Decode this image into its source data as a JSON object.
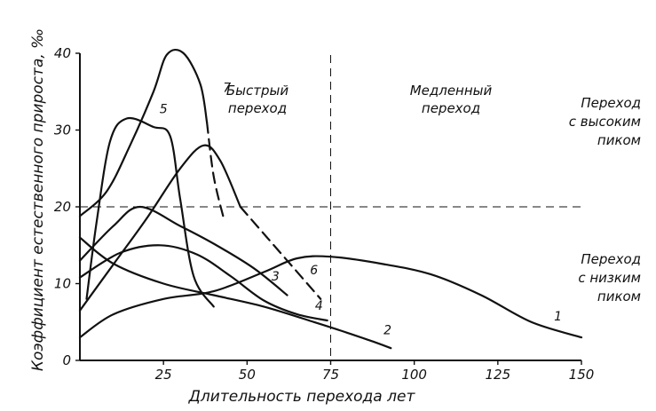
{
  "chart_data": {
    "type": "line",
    "title": "",
    "xlabel": "Длительность перехода лет",
    "ylabel": "Коэффициент естественного прироста, ‰",
    "xlim": [
      0,
      150
    ],
    "ylim": [
      0,
      40
    ],
    "xticks": [
      "25",
      "50",
      "75",
      "100",
      "125",
      "150"
    ],
    "yticks": [
      "0",
      "10",
      "20",
      "30",
      "40"
    ],
    "grid": false,
    "reference_lines": [
      {
        "axis": "x",
        "value": 75
      },
      {
        "axis": "y",
        "value": 20
      }
    ],
    "region_labels": {
      "fast": [
        "Быстрый",
        "переход"
      ],
      "slow": [
        "Медленный",
        "переход"
      ],
      "high_peak": [
        "Переход",
        "с высоким",
        "пиком"
      ],
      "low_peak": [
        "Переход",
        "с низким",
        "пиком"
      ]
    },
    "series": [
      {
        "name": "1",
        "solid": [
          [
            0,
            3
          ],
          [
            10,
            6
          ],
          [
            25,
            8
          ],
          [
            40,
            9
          ],
          [
            55,
            11.5
          ],
          [
            65,
            13.3
          ],
          [
            75,
            13.5
          ],
          [
            90,
            12.6
          ],
          [
            105,
            11.2
          ],
          [
            120,
            8.5
          ],
          [
            135,
            5
          ],
          [
            150,
            3
          ]
        ]
      },
      {
        "name": "2",
        "solid": [
          [
            0,
            16
          ],
          [
            10,
            12.6
          ],
          [
            25,
            10
          ],
          [
            40,
            8.5
          ],
          [
            55,
            7
          ],
          [
            70,
            5
          ],
          [
            80,
            3.6
          ],
          [
            88,
            2.4
          ],
          [
            93,
            1.6
          ]
        ]
      },
      {
        "name": "3",
        "solid": [
          [
            0,
            13
          ],
          [
            10,
            17.5
          ],
          [
            18,
            20
          ],
          [
            30,
            17.5
          ],
          [
            40,
            15.2
          ],
          [
            52,
            12
          ],
          [
            62,
            8.5
          ]
        ]
      },
      {
        "name": "4",
        "solid": [
          [
            0,
            10.8
          ],
          [
            12,
            14
          ],
          [
            24,
            15
          ],
          [
            35,
            13.8
          ],
          [
            45,
            11
          ],
          [
            55,
            7.8
          ],
          [
            65,
            6
          ],
          [
            74,
            5.2
          ]
        ]
      },
      {
        "name": "5",
        "solid": [
          [
            2,
            8
          ],
          [
            5,
            18
          ],
          [
            9,
            28.5
          ],
          [
            14,
            31.5
          ],
          [
            22,
            30.4
          ],
          [
            27,
            29.2
          ],
          [
            30,
            21
          ],
          [
            34,
            11
          ],
          [
            40,
            7
          ]
        ]
      },
      {
        "name": "6",
        "solid": [
          [
            0,
            6.5
          ],
          [
            10,
            12.5
          ],
          [
            20,
            18.5
          ],
          [
            30,
            25
          ],
          [
            37,
            28
          ],
          [
            42,
            26
          ],
          [
            48,
            20
          ]
        ],
        "dashed": [
          [
            48,
            20
          ],
          [
            56,
            16
          ],
          [
            64,
            12
          ],
          [
            72,
            8
          ]
        ]
      },
      {
        "name": "7",
        "solid": [
          [
            0,
            18.8
          ],
          [
            8,
            22
          ],
          [
            15,
            28
          ],
          [
            22,
            35
          ],
          [
            26,
            39.8
          ],
          [
            31,
            40
          ],
          [
            36,
            36
          ],
          [
            38,
            31
          ]
        ],
        "dashed": [
          [
            38,
            31
          ],
          [
            40,
            24
          ],
          [
            43,
            18.5
          ]
        ]
      }
    ]
  }
}
